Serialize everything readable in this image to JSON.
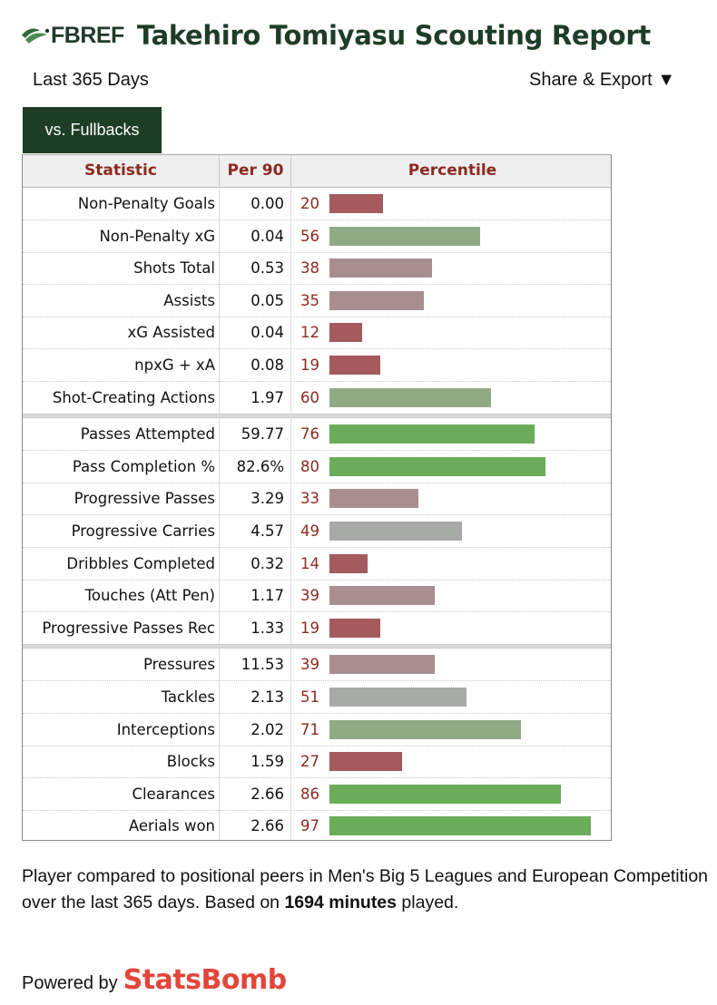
{
  "header": {
    "logo_text": "FBREF",
    "title": "Takehiro Tomiyasu Scouting Report"
  },
  "subbar": {
    "period": "Last 365 Days",
    "share_label": "Share & Export ▼"
  },
  "tab": {
    "label": "vs. Fullbacks"
  },
  "table": {
    "headers": {
      "statistic": "Statistic",
      "per90": "Per 90",
      "percentile": "Percentile"
    },
    "colors": {
      "low": "#a55a5e",
      "midlow": "#a88e91",
      "mid": "#a8aaa8",
      "midhigh": "#8fab86",
      "high": "#6aac5a"
    },
    "groups": [
      [
        {
          "stat": "Non-Penalty Goals",
          "per90": "0.00",
          "pct": "20"
        },
        {
          "stat": "Non-Penalty xG",
          "per90": "0.04",
          "pct": "56"
        },
        {
          "stat": "Shots Total",
          "per90": "0.53",
          "pct": "38"
        },
        {
          "stat": "Assists",
          "per90": "0.05",
          "pct": "35"
        },
        {
          "stat": "xG Assisted",
          "per90": "0.04",
          "pct": "12"
        },
        {
          "stat": "npxG + xA",
          "per90": "0.08",
          "pct": "19"
        },
        {
          "stat": "Shot-Creating Actions",
          "per90": "1.97",
          "pct": "60"
        }
      ],
      [
        {
          "stat": "Passes Attempted",
          "per90": "59.77",
          "pct": "76"
        },
        {
          "stat": "Pass Completion %",
          "per90": "82.6%",
          "pct": "80"
        },
        {
          "stat": "Progressive Passes",
          "per90": "3.29",
          "pct": "33"
        },
        {
          "stat": "Progressive Carries",
          "per90": "4.57",
          "pct": "49"
        },
        {
          "stat": "Dribbles Completed",
          "per90": "0.32",
          "pct": "14"
        },
        {
          "stat": "Touches (Att Pen)",
          "per90": "1.17",
          "pct": "39"
        },
        {
          "stat": "Progressive Passes Rec",
          "per90": "1.33",
          "pct": "19"
        }
      ],
      [
        {
          "stat": "Pressures",
          "per90": "11.53",
          "pct": "39"
        },
        {
          "stat": "Tackles",
          "per90": "2.13",
          "pct": "51"
        },
        {
          "stat": "Interceptions",
          "per90": "2.02",
          "pct": "71"
        },
        {
          "stat": "Blocks",
          "per90": "1.59",
          "pct": "27"
        },
        {
          "stat": "Clearances",
          "per90": "2.66",
          "pct": "86"
        },
        {
          "stat": "Aerials won",
          "per90": "2.66",
          "pct": "97"
        }
      ]
    ]
  },
  "footnote": {
    "text_before": "Player compared to positional peers in Men's Big 5 Leagues and European Competition over the last 365 days. Based on ",
    "minutes": "1694 minutes",
    "text_after": " played."
  },
  "powered": {
    "label": "Powered by",
    "brand": "StatsBomb"
  }
}
